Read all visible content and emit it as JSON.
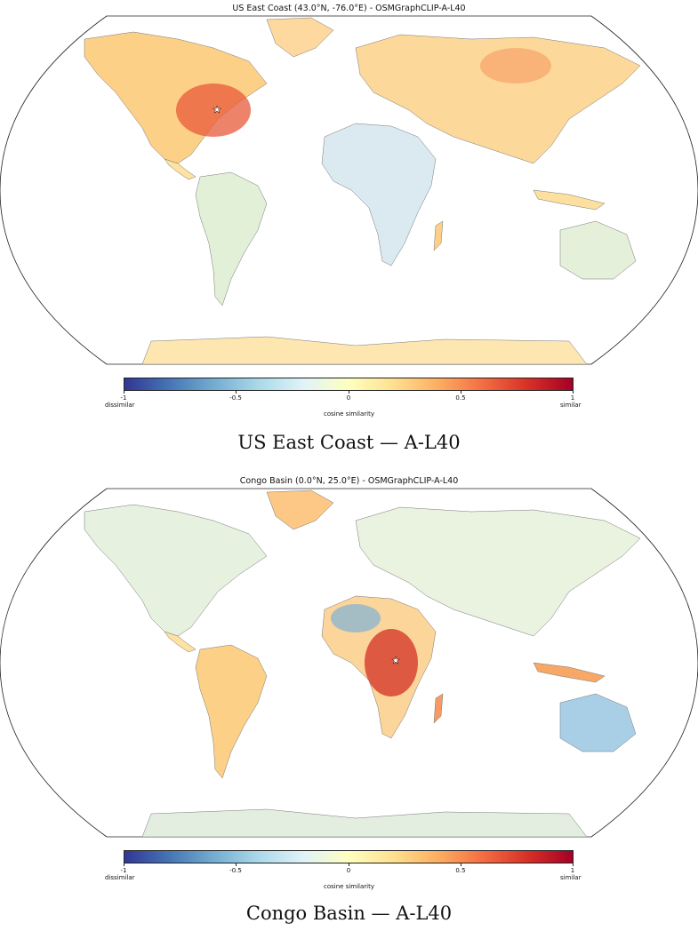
{
  "panels": [
    {
      "title": "US East Coast (43.0°N, -76.0°E) - OSMGraphCLIP-A-L40",
      "caption": "US East Coast — A-L40",
      "query_marker": {
        "lat": 43.0,
        "lon": -76.0
      }
    },
    {
      "title": "Congo Basin (0.0°N, 25.0°E) - OSMGraphCLIP-A-L40",
      "caption": "Congo Basin — A-L40",
      "query_marker": {
        "lat": 0.0,
        "lon": 25.0
      }
    }
  ],
  "colorbar": {
    "label": "cosine similarity",
    "ticks": [
      "-1",
      "-0.5",
      "0",
      "0.5",
      "1"
    ],
    "tick_values": [
      -1,
      -0.5,
      0,
      0.5,
      1
    ],
    "range": [
      -1,
      1
    ],
    "low_label": "dissimilar",
    "high_label": "similar",
    "colors": [
      "#313695",
      "#4575b4",
      "#74add1",
      "#abd9e9",
      "#e0f3f8",
      "#ffffbf",
      "#fee090",
      "#fdae61",
      "#f46d43",
      "#d73027",
      "#a50026"
    ]
  },
  "map_colors": {
    "ocean": "#ffffff",
    "land_base": "#fbe9a9",
    "border": "#555555"
  }
}
